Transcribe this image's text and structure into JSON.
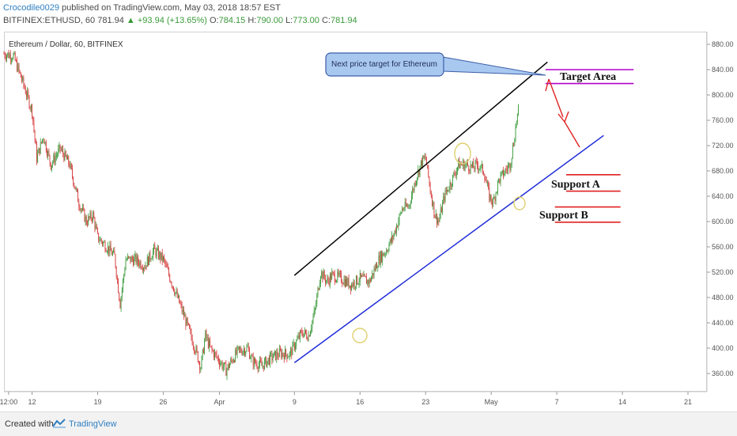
{
  "header": {
    "author": "Crocodile0029",
    "published_text": "published on TradingView.com, May 03, 2018 18:57 EST",
    "symbol_line": "BITFINEX:ETHUSD, 60",
    "last_price": "781.94",
    "change_text": "▲ +93.94 (+13.65%)",
    "o_label": "O:",
    "o_value": "784.15",
    "h_label": "H:",
    "h_value": "790.00",
    "l_label": "L:",
    "l_value": "773.00",
    "c_label": "C:",
    "c_value": "781.94"
  },
  "footer": {
    "created_with": "Created with",
    "brand": "TradingView"
  },
  "colors": {
    "up": "#3a9a3a",
    "down": "#d63a3a",
    "resistance": "#000000",
    "support_trend": "#1f2bd9",
    "target": "#b400c8",
    "annotation_fill": "#a9c8f0",
    "arrow": "#e02020",
    "circle": "#e0d070"
  },
  "chart_data": {
    "type": "candlestick",
    "title": "Ethereum / Dollar, 60, BITFINEX",
    "symbol": "BITFINEX:ETHUSD",
    "timeframe": "60",
    "ylim": [
      350,
      890
    ],
    "y_ticks": [
      360,
      400,
      440,
      480,
      520,
      560,
      600,
      640,
      680,
      720,
      760,
      800,
      840,
      880
    ],
    "x_ticks": [
      "12:00",
      "12",
      "19",
      "26",
      "Apr",
      "9",
      "16",
      "23",
      "May",
      "7",
      "14",
      "21"
    ],
    "x_tick_days": [
      9.5,
      12,
      19,
      26,
      32,
      40,
      47,
      54,
      61,
      68,
      75,
      82
    ],
    "price_series": [
      {
        "day": 9.0,
        "price": 865
      },
      {
        "day": 10.0,
        "price": 862
      },
      {
        "day": 11.0,
        "price": 820
      },
      {
        "day": 12.0,
        "price": 775
      },
      {
        "day": 12.5,
        "price": 700
      },
      {
        "day": 13.2,
        "price": 735
      },
      {
        "day": 14.0,
        "price": 690
      },
      {
        "day": 15.0,
        "price": 715
      },
      {
        "day": 16.0,
        "price": 690
      },
      {
        "day": 17.0,
        "price": 630
      },
      {
        "day": 17.8,
        "price": 600
      },
      {
        "day": 18.5,
        "price": 610
      },
      {
        "day": 19.0,
        "price": 575
      },
      {
        "day": 20.0,
        "price": 560
      },
      {
        "day": 20.8,
        "price": 545
      },
      {
        "day": 21.4,
        "price": 470
      },
      {
        "day": 22.0,
        "price": 540
      },
      {
        "day": 23.0,
        "price": 540
      },
      {
        "day": 24.0,
        "price": 530
      },
      {
        "day": 25.0,
        "price": 555
      },
      {
        "day": 26.0,
        "price": 540
      },
      {
        "day": 27.0,
        "price": 500
      },
      {
        "day": 28.0,
        "price": 460
      },
      {
        "day": 28.7,
        "price": 430
      },
      {
        "day": 29.5,
        "price": 395
      },
      {
        "day": 30.0,
        "price": 370
      },
      {
        "day": 30.5,
        "price": 420
      },
      {
        "day": 31.0,
        "price": 400
      },
      {
        "day": 32.0,
        "price": 380
      },
      {
        "day": 32.7,
        "price": 365
      },
      {
        "day": 33.5,
        "price": 385
      },
      {
        "day": 34.0,
        "price": 395
      },
      {
        "day": 35.0,
        "price": 400
      },
      {
        "day": 35.5,
        "price": 380
      },
      {
        "day": 36.5,
        "price": 372
      },
      {
        "day": 37.5,
        "price": 385
      },
      {
        "day": 38.5,
        "price": 392
      },
      {
        "day": 39.5,
        "price": 390
      },
      {
        "day": 40.0,
        "price": 405
      },
      {
        "day": 40.8,
        "price": 425
      },
      {
        "day": 41.5,
        "price": 420
      },
      {
        "day": 42.2,
        "price": 460
      },
      {
        "day": 42.8,
        "price": 520
      },
      {
        "day": 43.5,
        "price": 505
      },
      {
        "day": 44.0,
        "price": 515
      },
      {
        "day": 45.0,
        "price": 510
      },
      {
        "day": 46.0,
        "price": 500
      },
      {
        "day": 47.0,
        "price": 510
      },
      {
        "day": 48.0,
        "price": 505
      },
      {
        "day": 49.0,
        "price": 540
      },
      {
        "day": 49.8,
        "price": 555
      },
      {
        "day": 50.5,
        "price": 575
      },
      {
        "day": 51.5,
        "price": 620
      },
      {
        "day": 52.2,
        "price": 625
      },
      {
        "day": 53.0,
        "price": 670
      },
      {
        "day": 53.6,
        "price": 695
      },
      {
        "day": 54.0,
        "price": 700
      },
      {
        "day": 54.5,
        "price": 650
      },
      {
        "day": 55.0,
        "price": 610
      },
      {
        "day": 55.4,
        "price": 600
      },
      {
        "day": 56.0,
        "price": 640
      },
      {
        "day": 56.8,
        "price": 665
      },
      {
        "day": 57.5,
        "price": 690
      },
      {
        "day": 58.3,
        "price": 690
      },
      {
        "day": 59.0,
        "price": 685
      },
      {
        "day": 59.5,
        "price": 690
      },
      {
        "day": 60.2,
        "price": 680
      },
      {
        "day": 60.8,
        "price": 640
      },
      {
        "day": 61.2,
        "price": 630
      },
      {
        "day": 61.8,
        "price": 665
      },
      {
        "day": 62.5,
        "price": 680
      },
      {
        "day": 63.0,
        "price": 690
      },
      {
        "day": 63.4,
        "price": 725
      },
      {
        "day": 63.7,
        "price": 760
      },
      {
        "day": 64.0,
        "price": 782
      }
    ],
    "annotations": {
      "callout_text": "Next price target for Ethereum",
      "target_label": "Target Area",
      "support_a_label": "Support A",
      "support_b_label": "Support B",
      "resistance_line": {
        "from": {
          "day": 40.0,
          "price": 515
        },
        "to": {
          "day": 67.0,
          "price": 852
        }
      },
      "support_trendline": {
        "from": {
          "day": 40.0,
          "price": 377
        },
        "to": {
          "day": 73.0,
          "price": 736
        }
      },
      "target_area_prices": [
        840,
        818
      ],
      "support_a_prices": [
        674,
        648
      ],
      "support_b_prices": [
        623,
        599
      ]
    }
  }
}
